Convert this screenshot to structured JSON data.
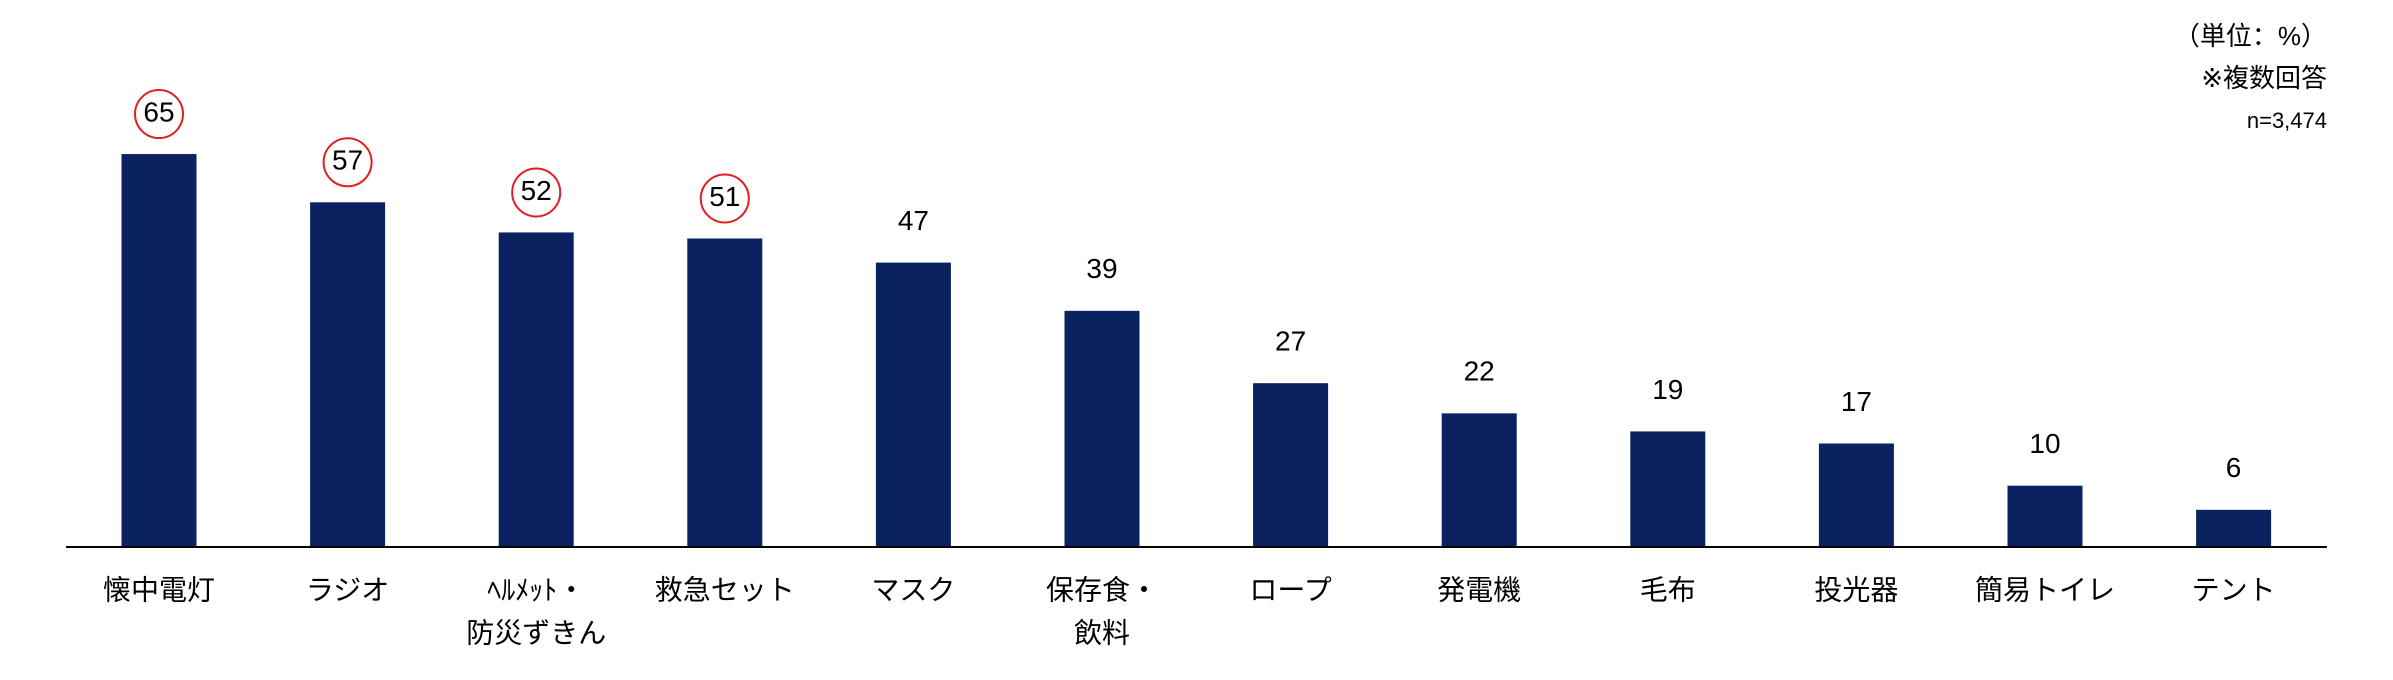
{
  "chart_data": {
    "type": "bar",
    "notes": [
      "（単位：%）",
      "※複数回答",
      "n=3,474"
    ],
    "categories": [
      [
        "懐中電灯"
      ],
      [
        "ラジオ"
      ],
      [
        "ﾍﾙﾒｯﾄ・",
        "防災ずきん"
      ],
      [
        "救急セット"
      ],
      [
        "マスク"
      ],
      [
        "保存食・",
        "飲料"
      ],
      [
        "ロープ"
      ],
      [
        "発電機"
      ],
      [
        "毛布"
      ],
      [
        "投光器"
      ],
      [
        "簡易トイレ"
      ],
      [
        "テント"
      ]
    ],
    "values": [
      65,
      57,
      52,
      51,
      47,
      39,
      27,
      22,
      19,
      17,
      10,
      6
    ],
    "color": "#0b2260",
    "circled": [
      true,
      true,
      true,
      true,
      false,
      false,
      false,
      false,
      false,
      false,
      false,
      false
    ],
    "circle_color": "#e02020"
  }
}
